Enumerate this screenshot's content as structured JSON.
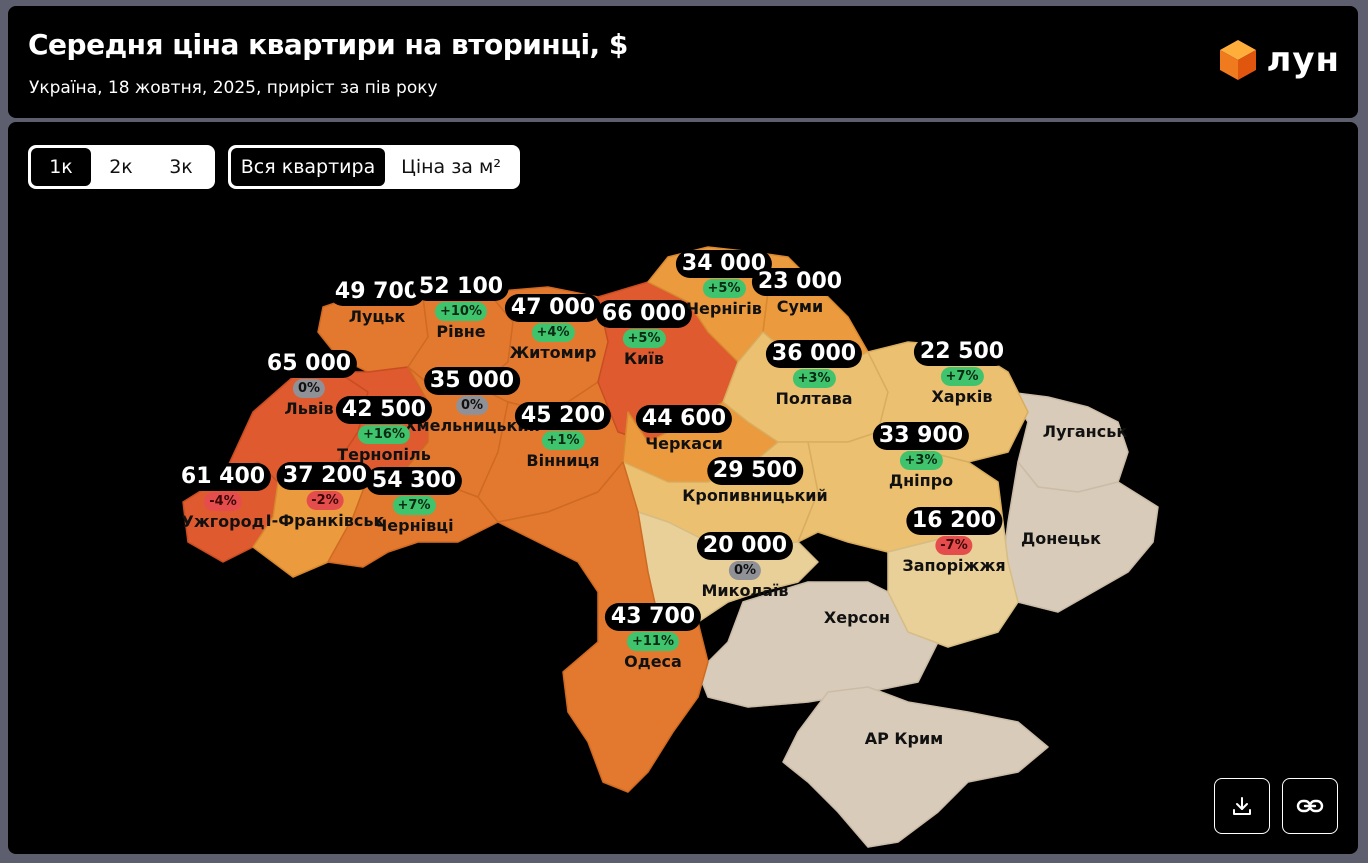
{
  "header": {
    "title": "Середня ціна квартири на вторинці, $",
    "subtitle": "Україна, 18 жовтня, 2025, приріст за пів року",
    "logo_text": "лун"
  },
  "controls": {
    "rooms": [
      {
        "label": "1к",
        "active": true
      },
      {
        "label": "2к",
        "active": false
      },
      {
        "label": "3к",
        "active": false
      }
    ],
    "mode": [
      {
        "label": "Вся квартира",
        "active": true
      },
      {
        "label": "Ціна за м²",
        "active": false
      }
    ]
  },
  "colors": {
    "very_high": "#df5a2d",
    "high": "#e3792f",
    "mid": "#eb9a3d",
    "low": "#ecc071",
    "lowest": "#e9cf98",
    "occupied": "#d8cbb9"
  },
  "cities": [
    {
      "name": "Луцьк",
      "price": "49 700",
      "change": null
    },
    {
      "name": "Рівне",
      "price": "52 100",
      "change": "+10%"
    },
    {
      "name": "Житомир",
      "price": "47 000",
      "change": "+4%"
    },
    {
      "name": "Київ",
      "price": "66 000",
      "change": "+5%"
    },
    {
      "name": "Чернігів",
      "price": "34 000",
      "change": "+5%"
    },
    {
      "name": "Суми",
      "price": "23 000",
      "change": null
    },
    {
      "name": "Львів",
      "price": "65 000",
      "change": "0%"
    },
    {
      "name": "Хмельницький",
      "price": "35 000",
      "change": "0%"
    },
    {
      "name": "Тернопіль",
      "price": "42 500",
      "change": "+16%"
    },
    {
      "name": "Вінниця",
      "price": "45 200",
      "change": "+1%"
    },
    {
      "name": "Черкаси",
      "price": "44 600",
      "change": null
    },
    {
      "name": "Полтава",
      "price": "36 000",
      "change": "+3%"
    },
    {
      "name": "Харків",
      "price": "22 500",
      "change": "+7%"
    },
    {
      "name": "Ужгород",
      "price": "61 400",
      "change": "-4%"
    },
    {
      "name": "І-Франківськ",
      "price": "37 200",
      "change": "-2%"
    },
    {
      "name": "Чернівці",
      "price": "54 300",
      "change": "+7%"
    },
    {
      "name": "Кропивницький",
      "price": "29 500",
      "change": null
    },
    {
      "name": "Дніпро",
      "price": "33 900",
      "change": "+3%"
    },
    {
      "name": "Запоріжжя",
      "price": "16 200",
      "change": "-7%"
    },
    {
      "name": "Миколаїв",
      "price": "20 000",
      "change": "0%"
    },
    {
      "name": "Одеса",
      "price": "43 700",
      "change": "+11%"
    }
  ],
  "occupied_regions": [
    "Луганськ",
    "Донецьк",
    "Херсон",
    "АР Крим"
  ],
  "buttons": {
    "download": "download-icon",
    "link": "link-icon"
  }
}
